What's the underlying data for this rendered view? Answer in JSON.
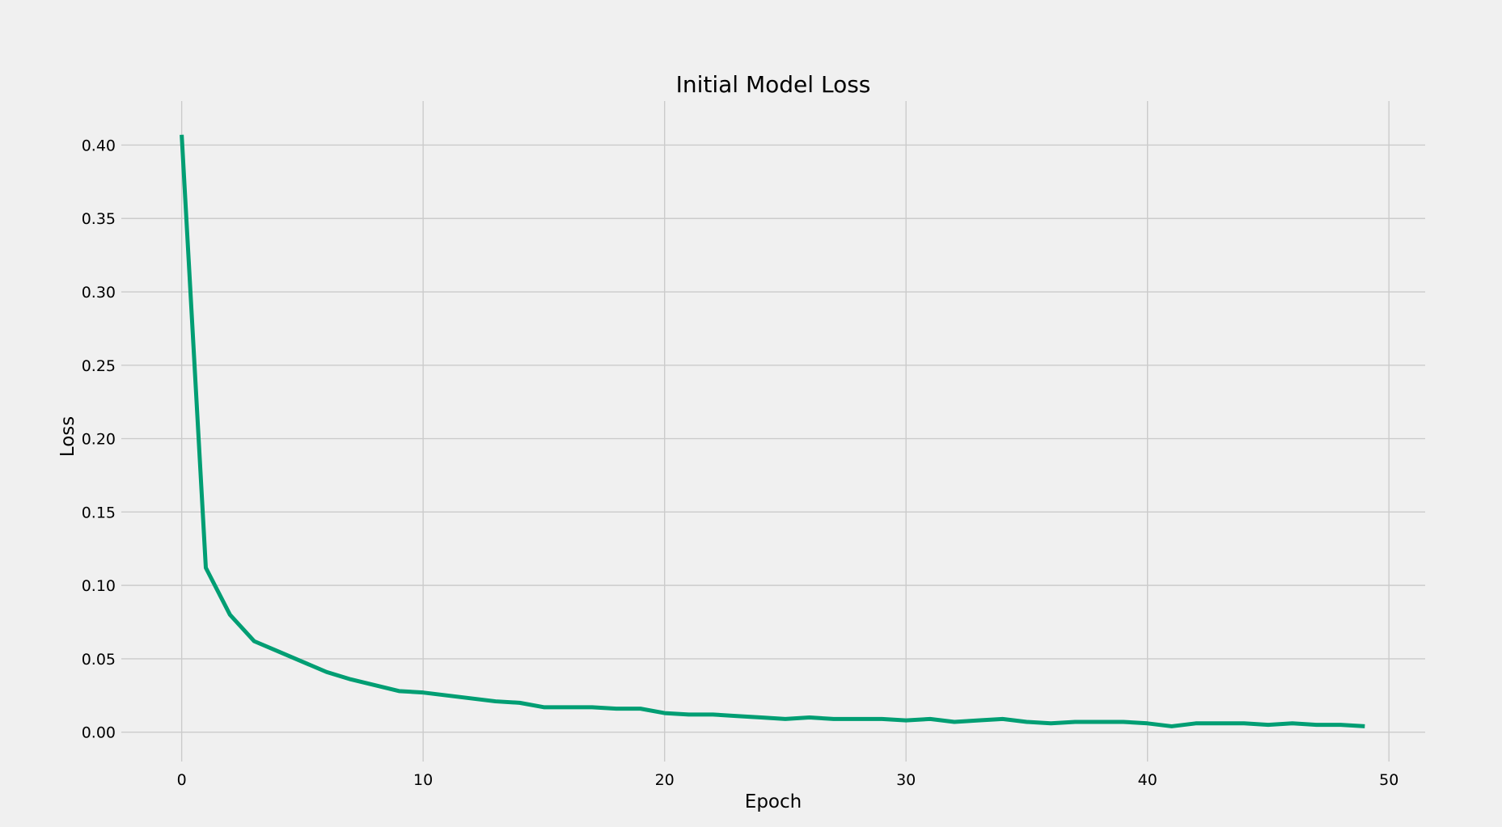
{
  "chart_data": {
    "type": "line",
    "title": "Initial Model Loss",
    "xlabel": "Epoch",
    "ylabel": "Loss",
    "xlim": [
      -2.5,
      51.5
    ],
    "ylim": [
      -0.02,
      0.43
    ],
    "xticks": [
      0,
      10,
      20,
      30,
      40,
      50
    ],
    "xtick_labels": [
      "0",
      "10",
      "20",
      "30",
      "40",
      "50"
    ],
    "yticks": [
      0.0,
      0.05,
      0.1,
      0.15,
      0.2,
      0.25,
      0.3,
      0.35,
      0.4
    ],
    "ytick_labels": [
      "0.00",
      "0.05",
      "0.10",
      "0.15",
      "0.20",
      "0.25",
      "0.30",
      "0.35",
      "0.40"
    ],
    "grid": true,
    "legend": "none",
    "colors": {
      "background": "#f0f0f0",
      "grid": "#cbcbcb",
      "series": "#009e73"
    },
    "series": [
      {
        "x": [
          0,
          1,
          2,
          3,
          4,
          5,
          6,
          7,
          8,
          9,
          10,
          11,
          12,
          13,
          14,
          15,
          16,
          17,
          18,
          19,
          20,
          21,
          22,
          23,
          24,
          25,
          26,
          27,
          28,
          29,
          30,
          31,
          32,
          33,
          34,
          35,
          36,
          37,
          38,
          39,
          40,
          41,
          42,
          43,
          44,
          45,
          46,
          47,
          48,
          49
        ],
        "values": [
          0.407,
          0.112,
          0.08,
          0.062,
          0.055,
          0.048,
          0.041,
          0.036,
          0.032,
          0.028,
          0.027,
          0.025,
          0.023,
          0.021,
          0.02,
          0.017,
          0.017,
          0.017,
          0.016,
          0.016,
          0.013,
          0.012,
          0.012,
          0.011,
          0.01,
          0.009,
          0.01,
          0.009,
          0.009,
          0.009,
          0.008,
          0.009,
          0.007,
          0.008,
          0.009,
          0.007,
          0.006,
          0.007,
          0.007,
          0.007,
          0.006,
          0.004,
          0.006,
          0.006,
          0.006,
          0.005,
          0.006,
          0.005,
          0.005,
          0.004
        ]
      }
    ]
  }
}
